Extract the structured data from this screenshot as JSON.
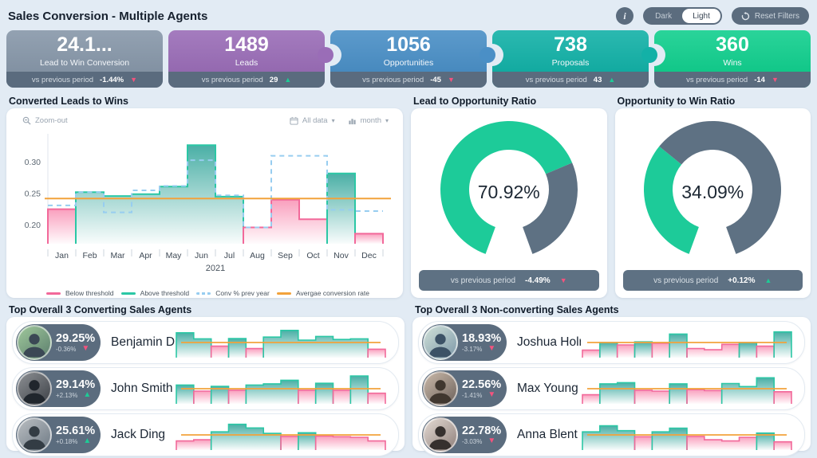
{
  "page": {
    "title": "Sales Conversion - Multiple Agents"
  },
  "controls": {
    "info_label": "i",
    "theme_dark": "Dark",
    "theme_light": "Light",
    "theme_active": "Light",
    "reset_label": "Reset Filters"
  },
  "kpis": [
    {
      "value": "24.1...",
      "label": "Lead to Win Conversion",
      "vs_label": "vs previous period",
      "delta": "-1.44%",
      "arrow": "▼",
      "dir": "down",
      "color": "#8797a9"
    },
    {
      "value": "1489",
      "label": "Leads",
      "vs_label": "vs previous period",
      "delta": "29",
      "arrow": "▲",
      "dir": "up",
      "color": "#9a6db7"
    },
    {
      "value": "1056",
      "label": "Opportunities",
      "vs_label": "vs previous period",
      "delta": "-45",
      "arrow": "▼",
      "dir": "down",
      "color": "#4a8fc6"
    },
    {
      "value": "738",
      "label": "Proposals",
      "vs_label": "vs previous period",
      "delta": "43",
      "arrow": "▲",
      "dir": "up",
      "color": "#13b1a7"
    },
    {
      "value": "360",
      "label": "Wins",
      "vs_label": "vs previous period",
      "delta": "-14",
      "arrow": "▼",
      "dir": "down",
      "color": "#12cf8e"
    }
  ],
  "sections": {
    "main_chart_title": "Converted Leads to Wins",
    "gauge1_title": "Lead to Opportunity Ratio",
    "gauge2_title": "Opportunity to Win Ratio",
    "converting_title": "Top Overall 3 Converting Sales Agents",
    "nonconverting_title": "Top Overall 3 Non-converting Sales Agents"
  },
  "toolbar": {
    "zoom_out": "Zoom-out",
    "all_data": "All data",
    "granularity": "month"
  },
  "chart_data": [
    {
      "id": "converted-leads-to-wins",
      "type": "area",
      "title": "Converted Leads to Wins",
      "x": [
        "Jan",
        "Feb",
        "Mar",
        "Apr",
        "May",
        "Jun",
        "Jul",
        "Aug",
        "Sep",
        "Oct",
        "Nov",
        "Dec"
      ],
      "x_group_label": "2021",
      "yticks": [
        "0.20",
        "0.25",
        "0.30"
      ],
      "ylim": [
        0.17,
        0.345
      ],
      "series": [
        {
          "name": "Conversion rate",
          "values": [
            0.225,
            0.252,
            0.246,
            0.249,
            0.261,
            0.327,
            0.245,
            0.196,
            0.24,
            0.209,
            0.282,
            0.186
          ]
        },
        {
          "name": "Conv % prev year",
          "style": "dashed",
          "values": [
            0.231,
            0.252,
            0.22,
            0.255,
            0.262,
            0.303,
            0.247,
            0.196,
            0.31,
            0.31,
            0.224,
            0.222
          ]
        },
        {
          "name": "Avergae conversion rate",
          "style": "hline",
          "value": 0.242
        }
      ],
      "legend": [
        {
          "label": "Below threshold",
          "color": "#f2699a",
          "dashed": false
        },
        {
          "label": "Above threshold",
          "color": "#2bc7a5",
          "dashed": false
        },
        {
          "label": "Conv % prev year",
          "color": "#97cdf0",
          "dashed": true
        },
        {
          "label": "Avergae conversion rate",
          "color": "#f2a23b",
          "dashed": false
        }
      ],
      "colors": {
        "above": "#2bc7a5",
        "below": "#f2699a",
        "prev_year": "#97cdf0",
        "average": "#f2a23b"
      }
    },
    {
      "id": "lead-to-opportunity-ratio",
      "type": "gauge",
      "title": "Lead to Opportunity Ratio",
      "value": 70.92,
      "display": "70.92%",
      "vs_label": "vs previous period",
      "delta": "-4.49%",
      "arrow": "▼",
      "dir": "down",
      "colors": {
        "fill": "#1dcb99",
        "rest": "#5e7183"
      }
    },
    {
      "id": "opportunity-to-win-ratio",
      "type": "gauge",
      "title": "Opportunity to Win Ratio",
      "value": 34.09,
      "display": "34.09%",
      "vs_label": "vs previous period",
      "delta": "+0.12%",
      "arrow": "▲",
      "dir": "up",
      "colors": {
        "fill": "#1dcb99",
        "rest": "#5e7183"
      }
    },
    {
      "id": "agent-sparklines",
      "type": "area",
      "threshold": 0.5,
      "series": [
        {
          "name": "Benjamin Dans",
          "values": [
            0.82,
            0.62,
            0.38,
            0.63,
            0.3,
            0.68,
            0.9,
            0.58,
            0.7,
            0.6,
            0.62,
            0.28
          ]
        },
        {
          "name": "John Smith",
          "values": [
            0.62,
            0.42,
            0.58,
            0.45,
            0.62,
            0.66,
            0.78,
            0.45,
            0.68,
            0.45,
            0.92,
            0.35
          ]
        },
        {
          "name": "Jack Ding",
          "values": [
            0.3,
            0.34,
            0.6,
            0.85,
            0.73,
            0.55,
            0.45,
            0.57,
            0.46,
            0.44,
            0.42,
            0.3
          ]
        },
        {
          "name": "Joshua Holmes",
          "values": [
            0.25,
            0.5,
            0.42,
            0.52,
            0.48,
            0.78,
            0.3,
            0.26,
            0.44,
            0.5,
            0.38,
            0.85
          ]
        },
        {
          "name": "Max Young",
          "values": [
            0.3,
            0.66,
            0.7,
            0.45,
            0.42,
            0.66,
            0.47,
            0.44,
            0.67,
            0.57,
            0.86,
            0.4
          ]
        },
        {
          "name": "Anna Blent",
          "values": [
            0.6,
            0.8,
            0.64,
            0.44,
            0.6,
            0.72,
            0.45,
            0.34,
            0.3,
            0.42,
            0.56,
            0.27
          ]
        }
      ]
    }
  ],
  "agents": {
    "converting": [
      {
        "name": "Benjamin Dans",
        "rate": "29.25%",
        "delta": "-0.36%",
        "arrow": "▼",
        "dir": "down"
      },
      {
        "name": "John Smith",
        "rate": "29.14%",
        "delta": "+2.13%",
        "arrow": "▲",
        "dir": "up"
      },
      {
        "name": "Jack Ding",
        "rate": "25.61%",
        "delta": "+0.18%",
        "arrow": "▲",
        "dir": "up"
      }
    ],
    "nonconverting": [
      {
        "name": "Joshua Holmes",
        "rate": "18.93%",
        "delta": "-3.17%",
        "arrow": "▼",
        "dir": "down"
      },
      {
        "name": "Max Young",
        "rate": "22.56%",
        "delta": "-1.41%",
        "arrow": "▼",
        "dir": "down"
      },
      {
        "name": "Anna Blent",
        "rate": "22.78%",
        "delta": "-3.03%",
        "arrow": "▼",
        "dir": "down"
      }
    ]
  }
}
